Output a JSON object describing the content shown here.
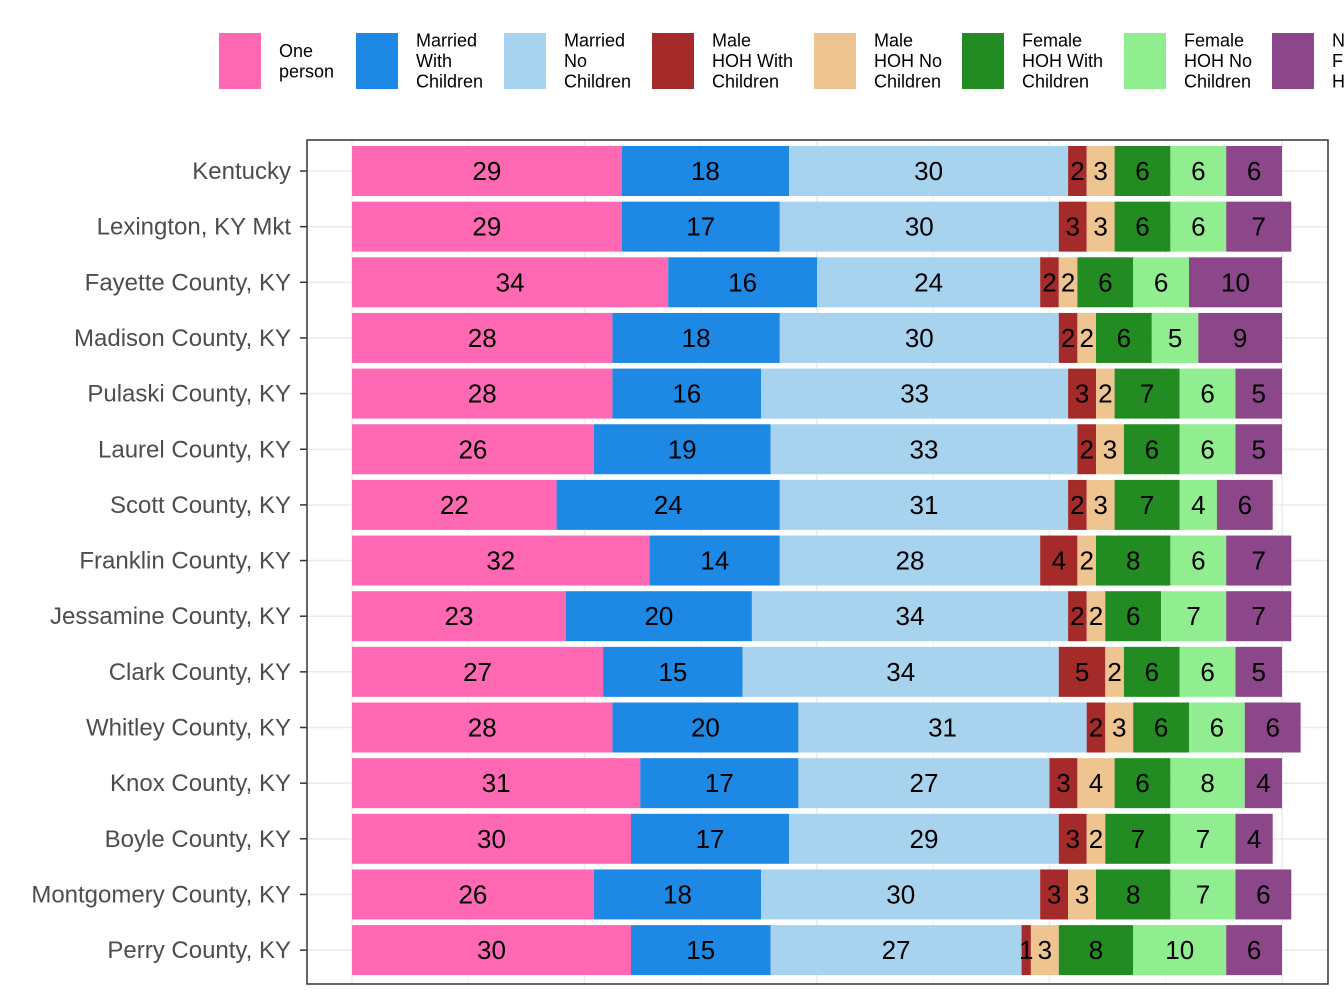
{
  "chart_data": {
    "type": "bar",
    "orientation": "horizontal",
    "stacked": true,
    "title": "",
    "xlabel": "",
    "ylabel": "",
    "xlim": [
      0,
      100
    ],
    "grid": true,
    "legend_position": "top",
    "categories": [
      "Kentucky",
      "Lexington, KY Mkt",
      "Fayette County, KY",
      "Madison County, KY",
      "Pulaski County, KY",
      "Laurel County, KY",
      "Scott County, KY",
      "Franklin County, KY",
      "Jessamine County, KY",
      "Clark County, KY",
      "Whitley County, KY",
      "Knox County, KY",
      "Boyle County, KY",
      "Montgomery County, KY",
      "Perry County, KY"
    ],
    "series": [
      {
        "name": "One person",
        "legend_lines": [
          "One",
          "person"
        ],
        "color": "#FF69B4",
        "values": [
          29,
          29,
          34,
          28,
          28,
          26,
          22,
          32,
          23,
          27,
          28,
          31,
          30,
          26,
          30
        ]
      },
      {
        "name": "Married With Children",
        "legend_lines": [
          "Married",
          "With",
          "Children"
        ],
        "color": "#1E88E5",
        "values": [
          18,
          17,
          16,
          18,
          16,
          19,
          24,
          14,
          20,
          15,
          20,
          17,
          17,
          18,
          15
        ]
      },
      {
        "name": "Married No Children",
        "legend_lines": [
          "Married",
          "No",
          "Children"
        ],
        "color": "#A8D3EE",
        "values": [
          30,
          30,
          24,
          30,
          33,
          33,
          31,
          28,
          34,
          34,
          31,
          27,
          29,
          30,
          27
        ]
      },
      {
        "name": "Male HOH With Children",
        "legend_lines": [
          "Male",
          "HOH With",
          "Children"
        ],
        "color": "#A52A2A",
        "values": [
          2,
          3,
          2,
          2,
          3,
          2,
          2,
          4,
          2,
          5,
          2,
          3,
          3,
          3,
          1
        ]
      },
      {
        "name": "Male HOH No Children",
        "legend_lines": [
          "Male",
          "HOH No",
          "Children"
        ],
        "color": "#EEC591",
        "values": [
          3,
          3,
          2,
          2,
          2,
          3,
          3,
          2,
          2,
          2,
          3,
          4,
          2,
          3,
          3
        ]
      },
      {
        "name": "Female HOH With Children",
        "legend_lines": [
          "Female",
          "HOH With",
          "Children"
        ],
        "color": "#228B22",
        "values": [
          6,
          6,
          6,
          6,
          7,
          6,
          7,
          8,
          6,
          6,
          6,
          6,
          7,
          8,
          8
        ]
      },
      {
        "name": "Female HOH No Children",
        "legend_lines": [
          "Female",
          "HOH No",
          "Children"
        ],
        "color": "#90EE90",
        "values": [
          6,
          6,
          6,
          5,
          6,
          6,
          4,
          6,
          7,
          6,
          6,
          8,
          7,
          7,
          10
        ]
      },
      {
        "name": "Non-Family HOH",
        "legend_lines": [
          "N",
          "F",
          "H"
        ],
        "color": "#8B4789",
        "values": [
          6,
          7,
          10,
          9,
          5,
          5,
          6,
          7,
          7,
          5,
          6,
          4,
          4,
          6,
          6
        ]
      }
    ]
  }
}
